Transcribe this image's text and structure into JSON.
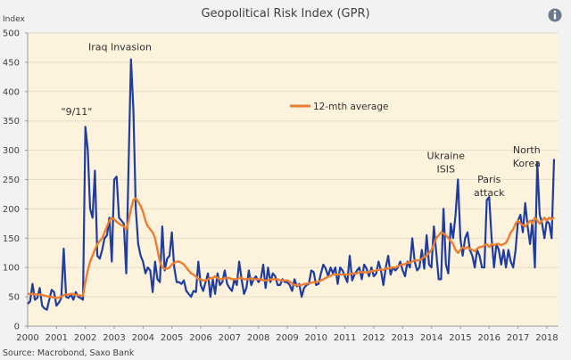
{
  "chart_data": {
    "type": "line",
    "title": "Geopolitical Risk Index (GPR)",
    "ylabel": "Index",
    "xlabel": "",
    "source": "Source: Macrobond, Saxo Bank",
    "ylim": [
      0,
      500
    ],
    "yticks": [
      0,
      50,
      100,
      150,
      200,
      250,
      300,
      350,
      400,
      450,
      500
    ],
    "xlim": [
      2000,
      2018.33
    ],
    "xticks": [
      "2000",
      "2001",
      "2002",
      "2003",
      "2004",
      "2005",
      "2006",
      "2007",
      "2008",
      "2009",
      "2010",
      "2011",
      "2012",
      "2013",
      "2014",
      "2015",
      "2016",
      "2017",
      "2018"
    ],
    "grid": true,
    "legend": {
      "position": "top-center",
      "entries": [
        {
          "name": "12-mth average",
          "color": "#ed7d31"
        }
      ]
    },
    "colors": {
      "gpr": "#1f3d9e",
      "avg": "#ed7d31",
      "plot_bg": "#fdf2dc",
      "grid": "#e6dccb",
      "page_bg": "#f2f2f2"
    },
    "annotations": [
      {
        "text": "\"9/11\"",
        "x": 2001.7,
        "y": 360
      },
      {
        "text": "Iraq Invasion",
        "x": 2003.2,
        "y": 470
      },
      {
        "text": "Ukraine",
        "x": 2014.5,
        "y": 285
      },
      {
        "text": "ISIS",
        "x": 2014.5,
        "y": 262
      },
      {
        "text": "Paris",
        "x": 2016.0,
        "y": 245
      },
      {
        "text": "attack",
        "x": 2016.0,
        "y": 222
      },
      {
        "text": "North",
        "x": 2017.3,
        "y": 295
      },
      {
        "text": "Korea",
        "x": 2017.3,
        "y": 272
      }
    ],
    "series": [
      {
        "name": "GPR",
        "start": 2000.0,
        "step_months": 1,
        "values": [
          38,
          42,
          72,
          45,
          48,
          65,
          35,
          30,
          28,
          45,
          62,
          58,
          35,
          40,
          48,
          132,
          50,
          48,
          55,
          45,
          58,
          50,
          48,
          45,
          340,
          300,
          200,
          185,
          265,
          120,
          115,
          130,
          150,
          155,
          185,
          110,
          250,
          255,
          185,
          180,
          175,
          90,
          280,
          455,
          370,
          200,
          140,
          120,
          110,
          90,
          100,
          95,
          58,
          110,
          80,
          75,
          170,
          95,
          115,
          120,
          160,
          100,
          75,
          75,
          72,
          78,
          60,
          55,
          50,
          60,
          58,
          110,
          70,
          60,
          75,
          90,
          50,
          80,
          55,
          90,
          70,
          75,
          95,
          72,
          65,
          60,
          80,
          70,
          110,
          80,
          55,
          65,
          95,
          70,
          80,
          85,
          75,
          80,
          105,
          65,
          100,
          75,
          90,
          85,
          70,
          70,
          80,
          75,
          75,
          70,
          60,
          80,
          68,
          72,
          50,
          65,
          70,
          72,
          95,
          92,
          70,
          72,
          90,
          105,
          98,
          85,
          100,
          90,
          100,
          72,
          100,
          95,
          85,
          75,
          120,
          78,
          88,
          95,
          100,
          80,
          105,
          98,
          85,
          100,
          85,
          90,
          110,
          95,
          70,
          100,
          120,
          88,
          100,
          95,
          100,
          110,
          95,
          85,
          110,
          100,
          150,
          110,
          95,
          100,
          130,
          98,
          155,
          105,
          100,
          170,
          125,
          80,
          80,
          200,
          105,
          90,
          175,
          150,
          190,
          250,
          150,
          120,
          150,
          160,
          130,
          120,
          100,
          130,
          120,
          100,
          100,
          215,
          220,
          150,
          100,
          140,
          130,
          105,
          130,
          100,
          130,
          110,
          100,
          130,
          180,
          190,
          160,
          210,
          170,
          140,
          180,
          100,
          280,
          190,
          175,
          150,
          180,
          175,
          150,
          285
        ]
      },
      {
        "name": "12-mth average",
        "start": 2000.0,
        "step_months": 1,
        "values": [
          55,
          55,
          55,
          54,
          54,
          54,
          53,
          52,
          51,
          50,
          50,
          49,
          48,
          49,
          50,
          53,
          54,
          54,
          55,
          55,
          53,
          53,
          52,
          52,
          75,
          95,
          110,
          120,
          130,
          140,
          145,
          150,
          160,
          170,
          180,
          185,
          182,
          178,
          175,
          172,
          170,
          165,
          180,
          200,
          215,
          218,
          212,
          205,
          195,
          180,
          170,
          165,
          160,
          150,
          130,
          110,
          100,
          98,
          98,
          100,
          105,
          108,
          110,
          110,
          108,
          105,
          100,
          95,
          90,
          88,
          85,
          80,
          80,
          78,
          78,
          80,
          82,
          82,
          85,
          82,
          80,
          80,
          82,
          82,
          82,
          80,
          80,
          80,
          82,
          82,
          80,
          80,
          80,
          82,
          80,
          80,
          80,
          80,
          78,
          78,
          78,
          80,
          80,
          80,
          80,
          78,
          78,
          78,
          78,
          76,
          72,
          70,
          70,
          70,
          70,
          72,
          72,
          73,
          74,
          75,
          75,
          76,
          78,
          80,
          82,
          84,
          86,
          88,
          88,
          88,
          88,
          88,
          88,
          88,
          88,
          90,
          90,
          90,
          92,
          92,
          92,
          92,
          92,
          94,
          94,
          95,
          96,
          96,
          96,
          98,
          98,
          100,
          100,
          100,
          102,
          104,
          105,
          106,
          108,
          108,
          110,
          112,
          112,
          112,
          115,
          118,
          120,
          125,
          130,
          140,
          150,
          155,
          160,
          158,
          155,
          150,
          145,
          140,
          130,
          125,
          130,
          135,
          132,
          135,
          132,
          130,
          128,
          132,
          135,
          135,
          138,
          140,
          135,
          140,
          138,
          140,
          140,
          138,
          140,
          142,
          150,
          160,
          165,
          175,
          180,
          175,
          172,
          170,
          175,
          180,
          175,
          185,
          180,
          175,
          180,
          185,
          180,
          185,
          182,
          185
        ]
      }
    ]
  }
}
